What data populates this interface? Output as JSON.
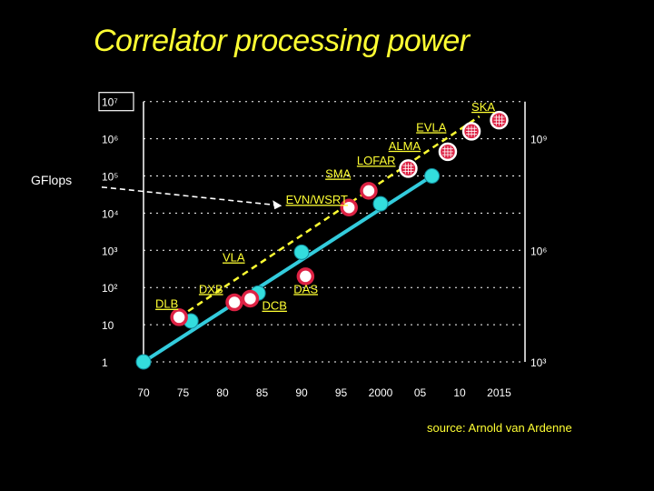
{
  "chart_data": {
    "type": "scatter",
    "title": "Correlator processing power",
    "ylabel": "GFlops",
    "ylim_log10": [
      0,
      7
    ],
    "xlim": [
      1970,
      2016
    ],
    "x_ticks": [
      {
        "year": 1970,
        "label": "70"
      },
      {
        "year": 1975,
        "label": "75"
      },
      {
        "year": 1980,
        "label": "80"
      },
      {
        "year": 1985,
        "label": "85"
      },
      {
        "year": 1990,
        "label": "90"
      },
      {
        "year": 1995,
        "label": "95"
      },
      {
        "year": 2000,
        "label": "2000"
      },
      {
        "year": 2005,
        "label": "05"
      },
      {
        "year": 2010,
        "label": "10"
      },
      {
        "year": 2015,
        "label": "2015"
      }
    ],
    "y_ticks_left": [
      {
        "log10": 0,
        "label": "1"
      },
      {
        "log10": 1,
        "label": "10"
      },
      {
        "log10": 2,
        "label": "10²"
      },
      {
        "log10": 3,
        "label": "10³"
      },
      {
        "log10": 4,
        "label": "10⁴"
      },
      {
        "log10": 5,
        "label": "10⁵"
      },
      {
        "log10": 6,
        "label": "10⁶"
      },
      {
        "log10": 7,
        "label": "10⁷"
      }
    ],
    "y_ticks_right": [
      {
        "log10": 0,
        "label": "10³"
      },
      {
        "log10": 3,
        "label": "10⁶"
      },
      {
        "log10": 6,
        "label": "10⁹"
      }
    ],
    "series": [
      {
        "type": "trend",
        "color": "#33ccdd",
        "points": [
          {
            "x": 1970,
            "y": 0
          },
          {
            "x": 2006.5,
            "y": 5.0
          }
        ]
      },
      {
        "type": "trend",
        "color": "#ffff33",
        "dashed": true,
        "points": [
          {
            "x": 1974.5,
            "y": 1.2
          },
          {
            "x": 2012.5,
            "y": 6.6
          }
        ]
      },
      {
        "type": "scatter",
        "color": "#33dddd",
        "points": [
          {
            "x": 1970,
            "y": 0
          },
          {
            "x": 1976,
            "y": 1.1
          },
          {
            "x": 1984.5,
            "y": 1.85
          },
          {
            "x": 1990,
            "y": 2.95
          },
          {
            "x": 2000,
            "y": 4.25
          },
          {
            "x": 2006.5,
            "y": 5.0
          }
        ]
      },
      {
        "type": "scatter",
        "color": "#dd2244",
        "points": [
          {
            "x": 1974.5,
            "y": 1.2
          },
          {
            "x": 1981.5,
            "y": 1.6
          },
          {
            "x": 1983.5,
            "y": 1.7
          },
          {
            "x": 1990.5,
            "y": 2.3
          },
          {
            "x": 1996,
            "y": 4.15
          },
          {
            "x": 1998.5,
            "y": 4.6
          }
        ]
      },
      {
        "type": "scatter",
        "color": "#dd2244",
        "grid_marker": true,
        "points": [
          {
            "x": 2003.5,
            "y": 5.2
          },
          {
            "x": 2008.5,
            "y": 5.65
          },
          {
            "x": 2011.5,
            "y": 6.2
          },
          {
            "x": 2015,
            "y": 6.5
          }
        ]
      }
    ],
    "labels": [
      {
        "text": "DLB",
        "x": 1971.5,
        "y": 1.45
      },
      {
        "text": "DXB",
        "x": 1977,
        "y": 1.85
      },
      {
        "text": "VLA",
        "x": 1980,
        "y": 2.7
      },
      {
        "text": "DCB",
        "x": 1985,
        "y": 1.4
      },
      {
        "text": "DAS",
        "x": 1989,
        "y": 1.85
      },
      {
        "text": "EVN/WSRT",
        "x": 1988,
        "y": 4.25
      },
      {
        "text": "SMA",
        "x": 1993,
        "y": 4.95
      },
      {
        "text": "LOFAR",
        "x": 1997,
        "y": 5.3
      },
      {
        "text": "ALMA",
        "x": 2001,
        "y": 5.7
      },
      {
        "text": "EVLA",
        "x": 2004.5,
        "y": 6.2
      },
      {
        "text": "SKA",
        "x": 2011.5,
        "y": 6.75
      }
    ],
    "annotation": {
      "text": "GFlops",
      "arrow_to": {
        "x": 1987.5,
        "y": 4.2
      }
    },
    "grid": "dashed-horizontal"
  },
  "source_note": "source: Arnold van Ardenne"
}
